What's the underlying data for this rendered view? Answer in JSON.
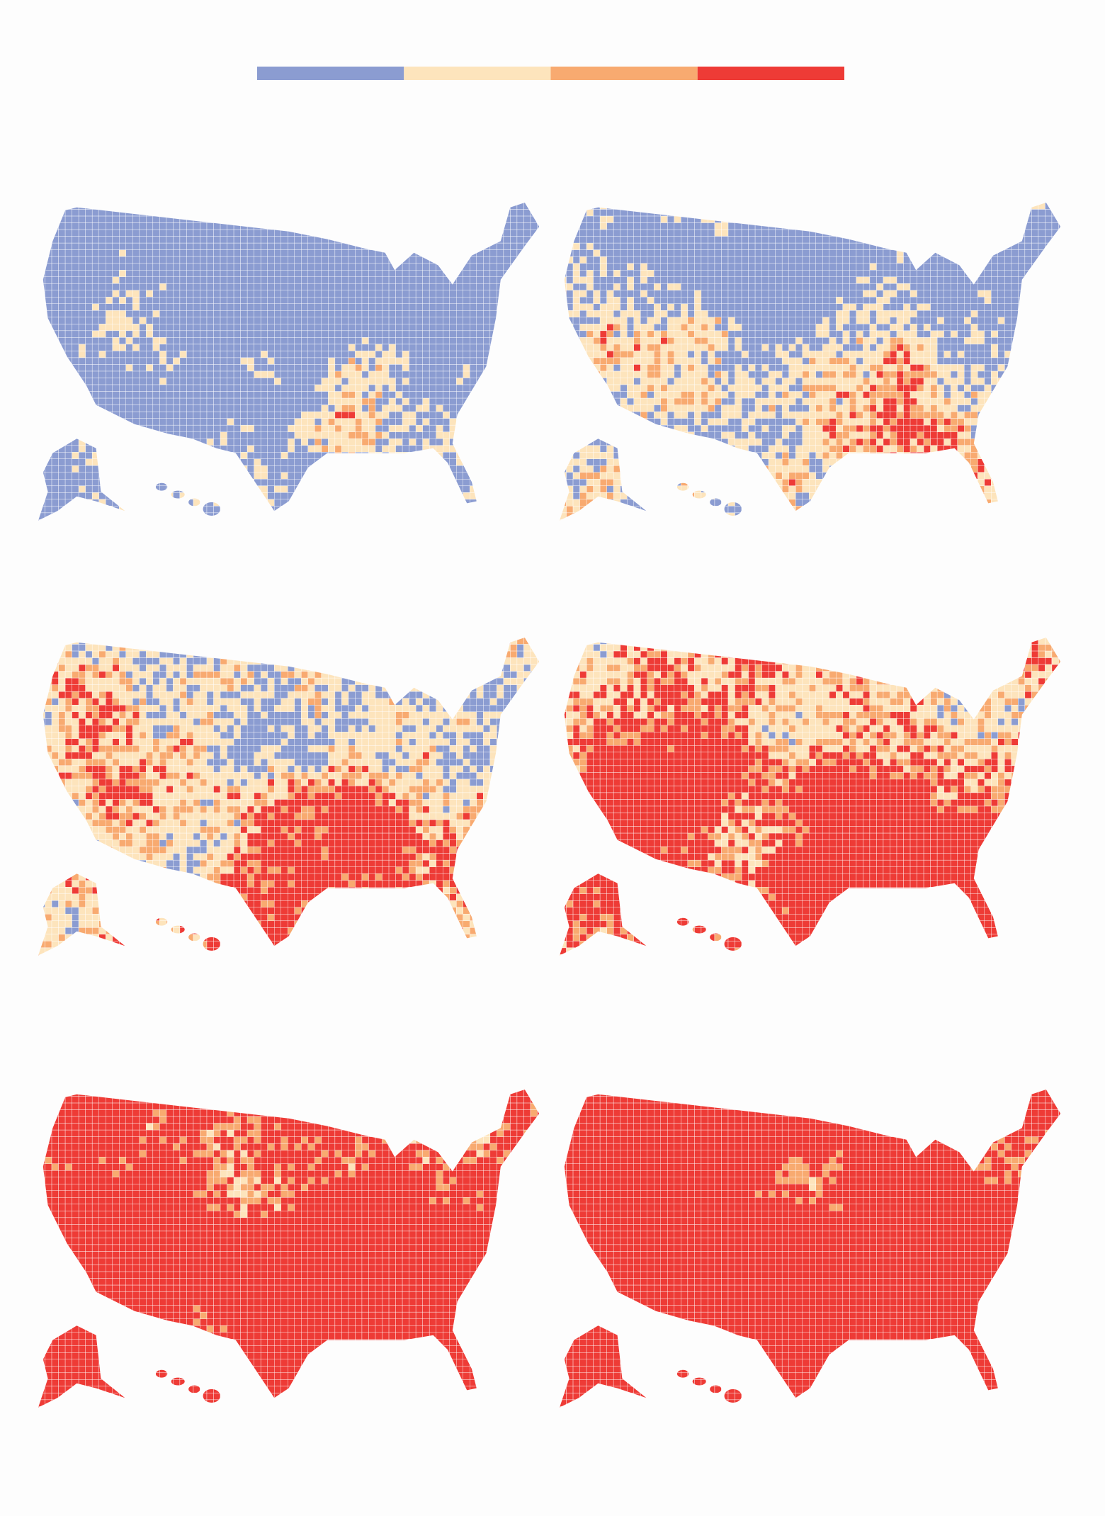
{
  "legend": {
    "colors": [
      "#8b9cd1",
      "#fde4bc",
      "#f8aa70",
      "#ee3b36"
    ]
  }
}
